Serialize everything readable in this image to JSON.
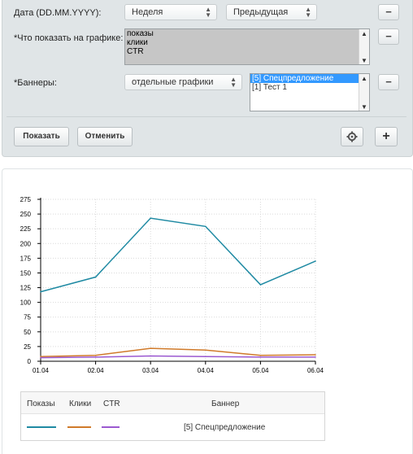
{
  "filter": {
    "date": {
      "label": "Дата (DD.MM.YYYY):",
      "period_value": "Неделя",
      "offset_value": "Предыдущая"
    },
    "show": {
      "label": "*Что показать на графике:",
      "options": [
        "показы",
        "клики",
        "CTR"
      ]
    },
    "banners": {
      "label": "*Баннеры:",
      "mode_value": "отдельные графики",
      "options": [
        "[5] Спецпредложение",
        "[1] Тест 1"
      ]
    },
    "show_button": "Показать",
    "cancel_button": "Отменить",
    "minus_glyph": "−",
    "plus_glyph": "+"
  },
  "chart_data": {
    "type": "line",
    "categories": [
      "01.04",
      "02.04",
      "03.04",
      "04.04",
      "05.04",
      "06.04"
    ],
    "yticks": [
      "0",
      "25",
      "50",
      "75",
      "100",
      "125",
      "150",
      "175",
      "200",
      "225",
      "250",
      "275"
    ],
    "ylim": [
      0,
      275
    ],
    "grid": true,
    "series": [
      {
        "name": "Показы",
        "color": "#1f8aa3",
        "values": [
          118,
          143,
          243,
          229,
          130,
          170
        ]
      },
      {
        "name": "Клики",
        "color": "#d07a2a",
        "values": [
          8,
          10,
          22,
          19,
          10,
          11
        ]
      },
      {
        "name": "CTR",
        "color": "#9b59d0",
        "values": [
          6,
          7,
          9,
          8,
          7,
          7
        ]
      }
    ]
  },
  "legend": {
    "headers": [
      "Показы",
      "Клики",
      "CTR",
      "Баннер"
    ],
    "banner_name": "[5] Спецпредложение"
  }
}
